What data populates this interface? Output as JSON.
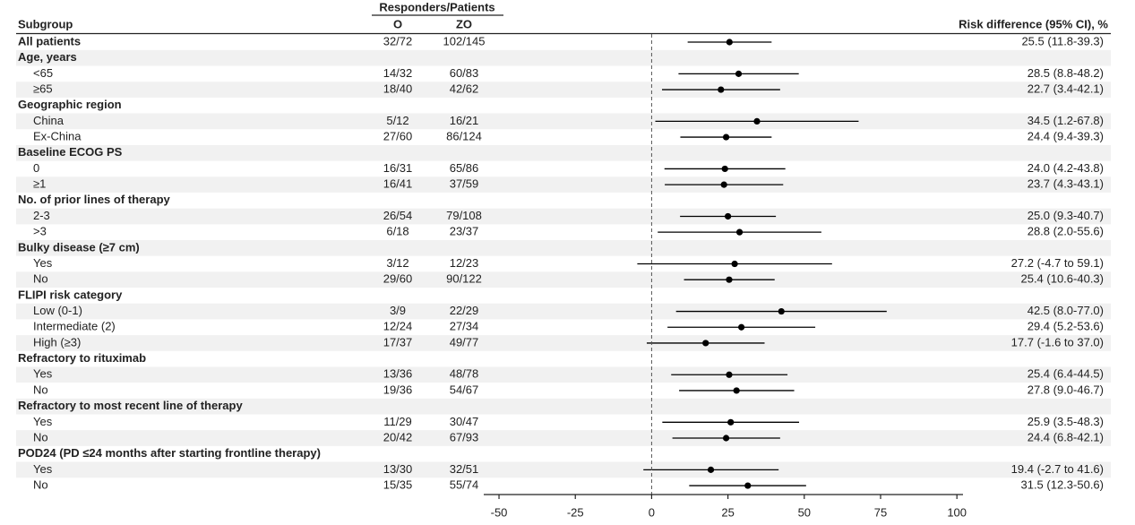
{
  "chart_data": {
    "type": "forest",
    "columns": {
      "subgroup": "Subgroup",
      "responders": "Responders/Patients",
      "o": "O",
      "zo": "ZO",
      "risk": "Risk difference (95% CI), %"
    },
    "color": "#000000",
    "xlim": [
      -55,
      102
    ],
    "xticks": [
      -50,
      -25,
      0,
      25,
      50,
      75,
      100
    ],
    "reference_line": 0,
    "overall": {
      "label": "All patients",
      "o": "32/72",
      "zo": "102/145",
      "value": 25.5,
      "ci": [
        11.8,
        39.3
      ],
      "value_label": "25.5 (11.8-39.3)"
    },
    "groups": [
      {
        "name": "Age, years",
        "rows": [
          {
            "label": "<65",
            "o": "14/32",
            "zo": "60/83",
            "value": 28.5,
            "ci": [
              8.8,
              48.2
            ],
            "value_label": "28.5 (8.8-48.2)"
          },
          {
            "label": "≥65",
            "o": "18/40",
            "zo": "42/62",
            "value": 22.7,
            "ci": [
              3.4,
              42.1
            ],
            "value_label": "22.7 (3.4-42.1)"
          }
        ]
      },
      {
        "name": "Geographic region",
        "rows": [
          {
            "label": "China",
            "o": "5/12",
            "zo": "16/21",
            "value": 34.5,
            "ci": [
              1.2,
              67.8
            ],
            "value_label": "34.5 (1.2-67.8)"
          },
          {
            "label": "Ex-China",
            "o": "27/60",
            "zo": "86/124",
            "value": 24.4,
            "ci": [
              9.4,
              39.3
            ],
            "value_label": "24.4 (9.4-39.3)"
          }
        ]
      },
      {
        "name": "Baseline ECOG PS",
        "rows": [
          {
            "label": "0",
            "o": "16/31",
            "zo": "65/86",
            "value": 24.0,
            "ci": [
              4.2,
              43.8
            ],
            "value_label": "24.0 (4.2-43.8)"
          },
          {
            "label": "≥1",
            "o": "16/41",
            "zo": "37/59",
            "value": 23.7,
            "ci": [
              4.3,
              43.1
            ],
            "value_label": "23.7 (4.3-43.1)"
          }
        ]
      },
      {
        "name": "No. of prior lines of therapy",
        "rows": [
          {
            "label": "2-3",
            "o": "26/54",
            "zo": "79/108",
            "value": 25.0,
            "ci": [
              9.3,
              40.7
            ],
            "value_label": "25.0 (9.3-40.7)"
          },
          {
            "label": ">3",
            "o": "6/18",
            "zo": "23/37",
            "value": 28.8,
            "ci": [
              2.0,
              55.6
            ],
            "value_label": "28.8 (2.0-55.6)"
          }
        ]
      },
      {
        "name": "Bulky disease (≥7 cm)",
        "rows": [
          {
            "label": "Yes",
            "o": "3/12",
            "zo": "12/23",
            "value": 27.2,
            "ci": [
              -4.7,
              59.1
            ],
            "value_label": "27.2 (-4.7 to 59.1)"
          },
          {
            "label": "No",
            "o": "29/60",
            "zo": "90/122",
            "value": 25.4,
            "ci": [
              10.6,
              40.3
            ],
            "value_label": "25.4 (10.6-40.3)"
          }
        ]
      },
      {
        "name": "FLIPI risk category",
        "rows": [
          {
            "label": "Low (0-1)",
            "o": "3/9",
            "zo": "22/29",
            "value": 42.5,
            "ci": [
              8.0,
              77.0
            ],
            "value_label": "42.5 (8.0-77.0)"
          },
          {
            "label": "Intermediate (2)",
            "o": "12/24",
            "zo": "27/34",
            "value": 29.4,
            "ci": [
              5.2,
              53.6
            ],
            "value_label": "29.4 (5.2-53.6)"
          },
          {
            "label": "High (≥3)",
            "o": "17/37",
            "zo": "49/77",
            "value": 17.7,
            "ci": [
              -1.6,
              37.0
            ],
            "value_label": "17.7 (-1.6 to 37.0)"
          }
        ]
      },
      {
        "name": "Refractory to rituximab",
        "rows": [
          {
            "label": "Yes",
            "o": "13/36",
            "zo": "48/78",
            "value": 25.4,
            "ci": [
              6.4,
              44.5
            ],
            "value_label": "25.4 (6.4-44.5)"
          },
          {
            "label": "No",
            "o": "19/36",
            "zo": "54/67",
            "value": 27.8,
            "ci": [
              9.0,
              46.7
            ],
            "value_label": "27.8 (9.0-46.7)"
          }
        ]
      },
      {
        "name": "Refractory to most recent line of therapy",
        "rows": [
          {
            "label": "Yes",
            "o": "11/29",
            "zo": "30/47",
            "value": 25.9,
            "ci": [
              3.5,
              48.3
            ],
            "value_label": "25.9 (3.5-48.3)"
          },
          {
            "label": "No",
            "o": "20/42",
            "zo": "67/93",
            "value": 24.4,
            "ci": [
              6.8,
              42.1
            ],
            "value_label": "24.4 (6.8-42.1)"
          }
        ]
      },
      {
        "name": "POD24 (PD ≤24 months after starting frontline therapy)",
        "rows": [
          {
            "label": "Yes",
            "o": "13/30",
            "zo": "32/51",
            "value": 19.4,
            "ci": [
              -2.7,
              41.6
            ],
            "value_label": "19.4 (-2.7 to 41.6)"
          },
          {
            "label": "No",
            "o": "15/35",
            "zo": "55/74",
            "value": 31.5,
            "ci": [
              12.3,
              50.6
            ],
            "value_label": "31.5 (12.3-50.6)"
          }
        ]
      }
    ]
  }
}
